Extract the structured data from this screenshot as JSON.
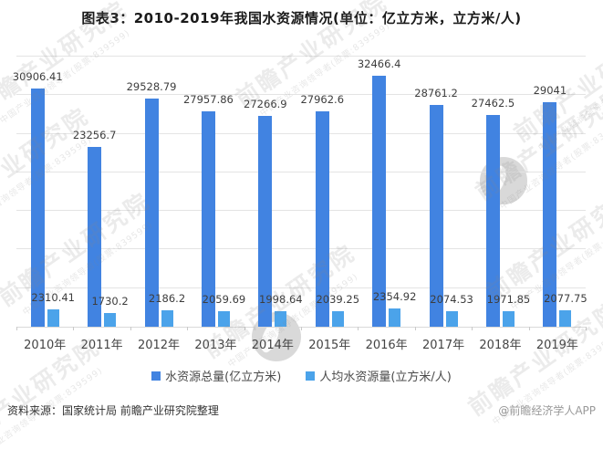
{
  "title": "图表3：2010-2019年我国水资源情况(单位：亿立方米，立方米/人)",
  "chart_data": {
    "type": "bar",
    "categories": [
      "2010年",
      "2011年",
      "2012年",
      "2013年",
      "2014年",
      "2015年",
      "2016年",
      "2017年",
      "2018年",
      "2019年"
    ],
    "series": [
      {
        "name": "水资源总量(亿立方米)",
        "color": "#4183E1",
        "values": [
          30906.41,
          23256.7,
          29528.79,
          27957.86,
          27266.9,
          27962.6,
          32466.4,
          28761.2,
          27462.5,
          29041
        ]
      },
      {
        "name": "人均水资源量(立方米/人)",
        "color": "#4BA3EA",
        "values": [
          2310.41,
          1730.2,
          2186.2,
          2059.69,
          1998.64,
          2039.25,
          2354.92,
          2074.53,
          1971.85,
          2077.75
        ]
      }
    ],
    "title": "图表3：2010-2019年我国水资源情况(单位：亿立方米，立方米/人)",
    "xlabel": "",
    "ylabel": "",
    "ylim": [
      0,
      35000
    ],
    "grid_step": 5000,
    "grid": "on",
    "y_axis_labels_visible": false,
    "legend_position": "bottom"
  },
  "footer": {
    "source": "资料来源：国家统计局 前瞻产业研究院整理",
    "credit": "@前瞻经济学人APP"
  },
  "watermark": {
    "text": "前瞻产业研究院",
    "subtext": "中国产业咨询领导者(股票:839599)"
  }
}
